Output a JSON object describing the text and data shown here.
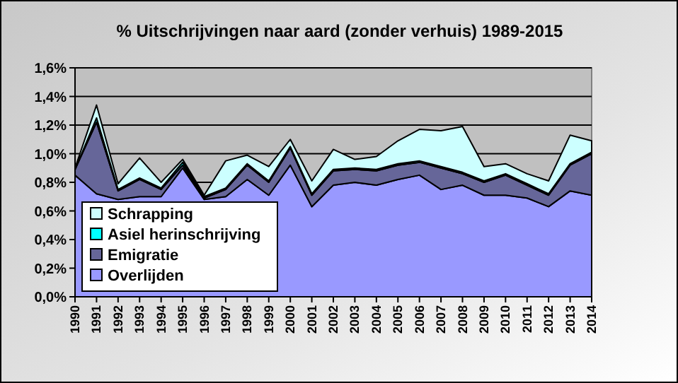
{
  "chart_data": {
    "type": "area",
    "stacked": true,
    "title": "% Uitschrijvingen naar aard (zonder verhuis) 1989-2015",
    "categories": [
      "1990",
      "1991",
      "1992",
      "1993",
      "1994",
      "1995",
      "1996",
      "1997",
      "1998",
      "1999",
      "2000",
      "2001",
      "2002",
      "2003",
      "2004",
      "2005",
      "2006",
      "2007",
      "2008",
      "2009",
      "2010",
      "2011",
      "2012",
      "2013",
      "2014"
    ],
    "series": [
      {
        "name": "Overlijden",
        "color": "#9999ff",
        "values": [
          0.85,
          0.72,
          0.68,
          0.7,
          0.7,
          0.9,
          0.68,
          0.7,
          0.82,
          0.71,
          0.92,
          0.63,
          0.78,
          0.8,
          0.78,
          0.82,
          0.85,
          0.75,
          0.78,
          0.71,
          0.71,
          0.69,
          0.63,
          0.74,
          0.71
        ]
      },
      {
        "name": "Emigratie",
        "color": "#666699",
        "values": [
          0.04,
          0.5,
          0.06,
          0.12,
          0.05,
          0.02,
          0.01,
          0.05,
          0.1,
          0.09,
          0.12,
          0.08,
          0.1,
          0.09,
          0.1,
          0.1,
          0.09,
          0.15,
          0.08,
          0.09,
          0.14,
          0.09,
          0.08,
          0.18,
          0.29
        ]
      },
      {
        "name": "Asiel herinschrijving",
        "color": "#00ffff",
        "values": [
          0,
          0.03,
          0.01,
          0.01,
          0.01,
          0.02,
          0.01,
          0.01,
          0.01,
          0.01,
          0.01,
          0.01,
          0.01,
          0.01,
          0.01,
          0.01,
          0.01,
          0.01,
          0.01,
          0.01,
          0.01,
          0.01,
          0.01,
          0.01,
          0.01
        ]
      },
      {
        "name": "Schrapping",
        "color": "#ccffff",
        "values": [
          0.01,
          0.09,
          0.04,
          0.14,
          0.04,
          0.02,
          0.01,
          0.19,
          0.06,
          0.1,
          0.05,
          0.09,
          0.14,
          0.06,
          0.09,
          0.16,
          0.22,
          0.25,
          0.32,
          0.1,
          0.07,
          0.07,
          0.09,
          0.2,
          0.08
        ]
      }
    ],
    "ylim": [
      0,
      1.6
    ],
    "yticks": [
      {
        "value": 0,
        "label": "0,0%"
      },
      {
        "value": 0.2,
        "label": "0,2%"
      },
      {
        "value": 0.4,
        "label": "0,4%"
      },
      {
        "value": 0.6,
        "label": "0,6%"
      },
      {
        "value": 0.8,
        "label": "0,8%"
      },
      {
        "value": 1,
        "label": "1,0%"
      },
      {
        "value": 1.2,
        "label": "1,2%"
      },
      {
        "value": 1.4,
        "label": "1,4%"
      },
      {
        "value": 1.6,
        "label": "1,6%"
      }
    ],
    "grid": "y",
    "legend": "bottom left"
  }
}
